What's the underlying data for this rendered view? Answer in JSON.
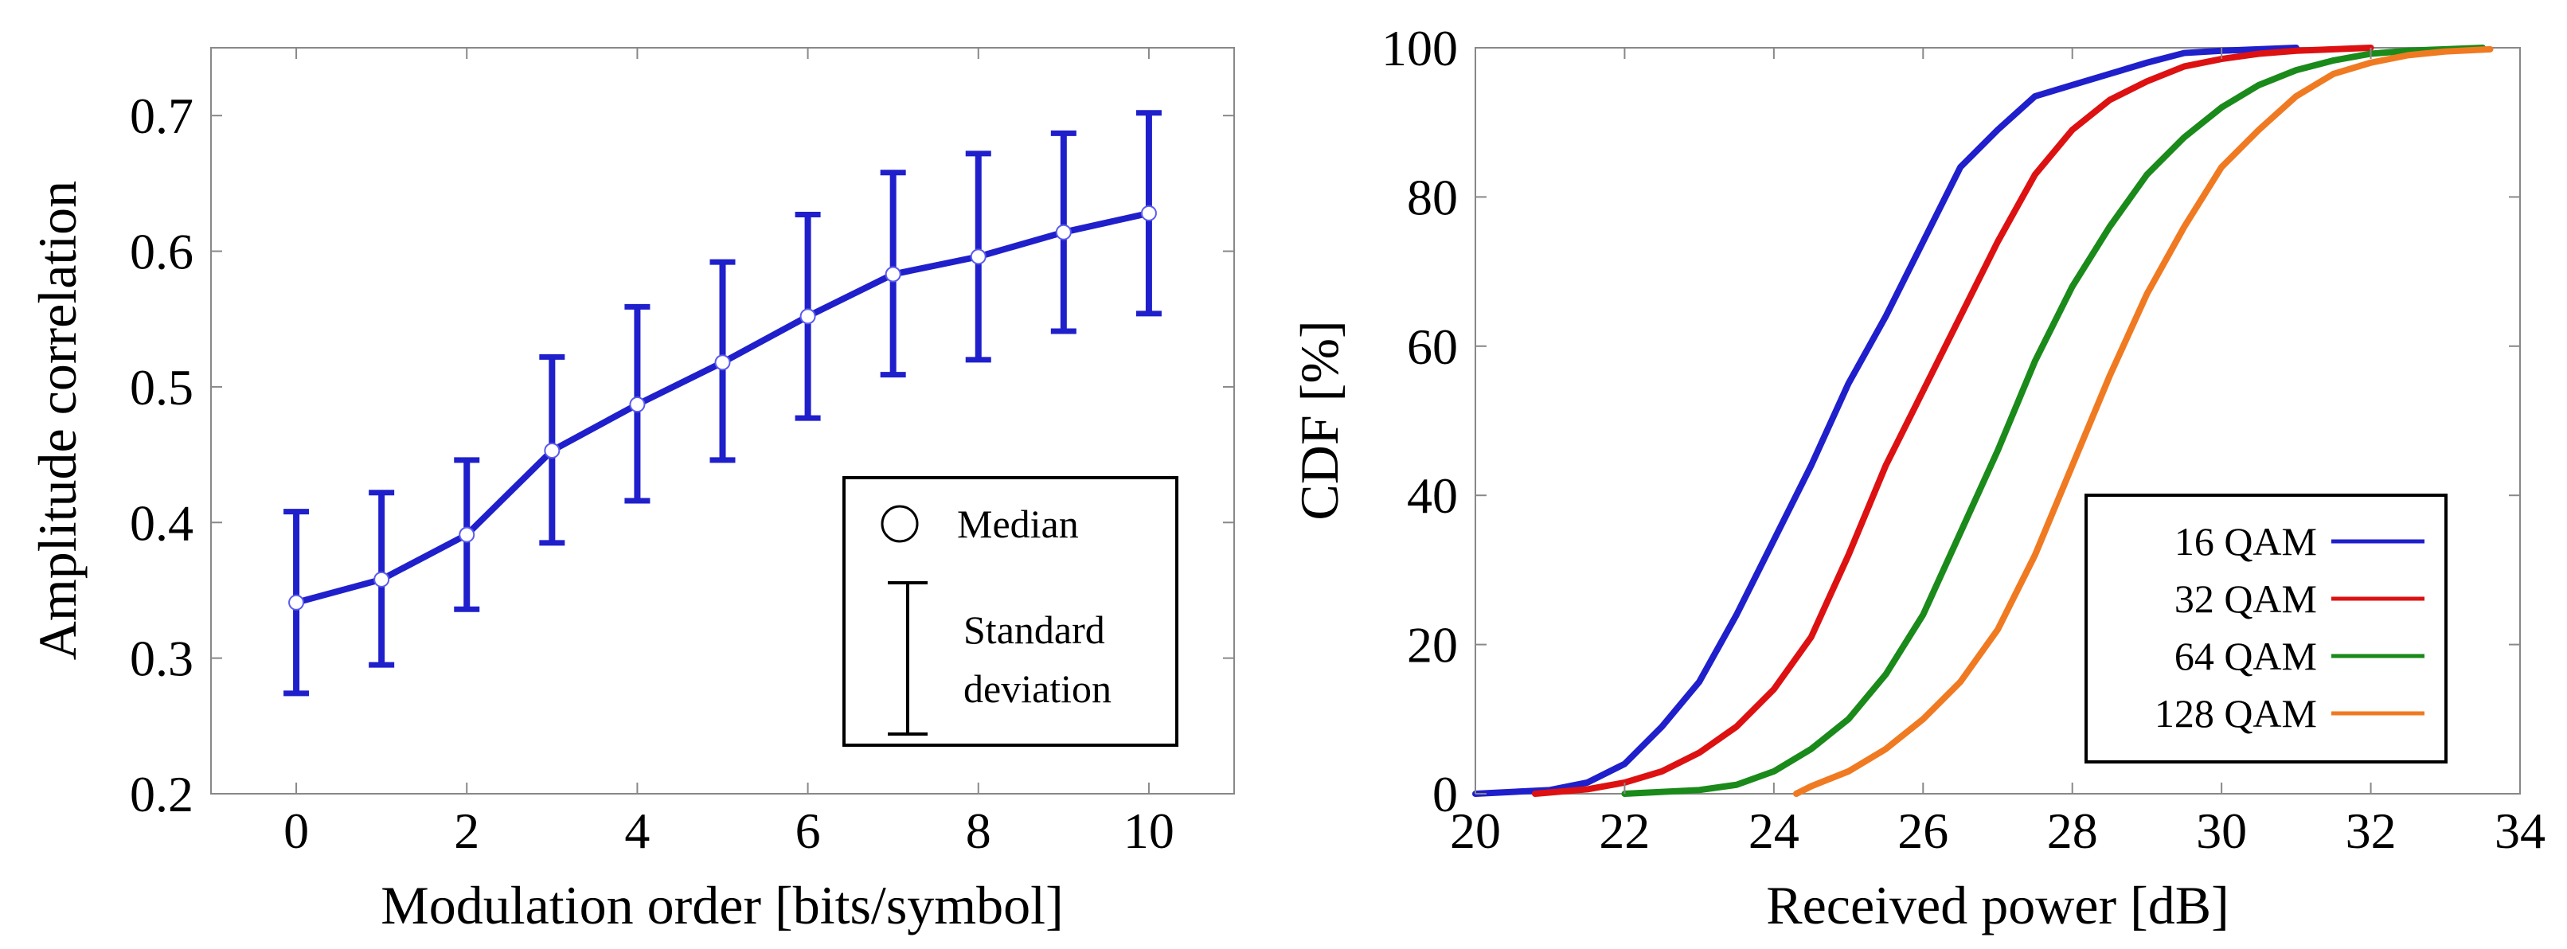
{
  "chart_data": [
    {
      "type": "line",
      "xlabel": "Modulation order [bits/symbol]",
      "ylabel": "Amplitude correlation",
      "xlim": [
        -1,
        11
      ],
      "ylim": [
        0.2,
        0.75
      ],
      "xticks": [
        "0",
        "2",
        "4",
        "6",
        "8",
        "10"
      ],
      "yticks": [
        "0.2",
        "0.3",
        "0.4",
        "0.5",
        "0.6",
        "0.7"
      ],
      "legend_position": "bottom-right",
      "legend": {
        "median": "Median",
        "std_line1": "Standard",
        "std_line2": "deviation"
      },
      "series": [
        {
          "name": "Median",
          "color": "#1f1fcc",
          "x": [
            0,
            1,
            2,
            3,
            4,
            5,
            6,
            7,
            8,
            9,
            10
          ],
          "values": [
            0.341,
            0.358,
            0.391,
            0.453,
            0.487,
            0.518,
            0.552,
            0.583,
            0.596,
            0.614,
            0.628
          ],
          "err_low": [
            0.274,
            0.295,
            0.336,
            0.385,
            0.416,
            0.446,
            0.477,
            0.509,
            0.52,
            0.541,
            0.554
          ],
          "err_high": [
            0.408,
            0.422,
            0.446,
            0.522,
            0.559,
            0.592,
            0.627,
            0.658,
            0.672,
            0.687,
            0.702
          ]
        }
      ]
    },
    {
      "type": "line",
      "xlabel": "Received power [dB]",
      "ylabel": "CDF [%]",
      "xlim": [
        20,
        34
      ],
      "ylim": [
        0,
        100
      ],
      "xticks": [
        "20",
        "22",
        "24",
        "26",
        "28",
        "30",
        "32",
        "34"
      ],
      "yticks": [
        "0",
        "20",
        "40",
        "60",
        "80",
        "100"
      ],
      "legend_position": "bottom-right",
      "series": [
        {
          "name": "16 QAM",
          "color": "#1f1fcc",
          "x": [
            20.0,
            21.0,
            21.5,
            22.0,
            22.5,
            23.0,
            23.5,
            24.0,
            24.5,
            25.0,
            25.5,
            26.0,
            26.5,
            27.0,
            27.5,
            28.0,
            28.5,
            29.0,
            29.5,
            30.0,
            30.5,
            31.0
          ],
          "values": [
            0,
            0.5,
            1.5,
            4,
            9,
            15,
            24,
            34,
            44,
            55,
            64,
            74,
            84,
            89,
            93.5,
            95,
            96.5,
            98,
            99.3,
            99.6,
            99.8,
            100
          ]
        },
        {
          "name": "32 QAM",
          "color": "#dd1111",
          "x": [
            20.8,
            21.5,
            22.0,
            22.5,
            23.0,
            23.5,
            24.0,
            24.5,
            25.0,
            25.5,
            26.0,
            26.5,
            27.0,
            27.5,
            28.0,
            28.5,
            29.0,
            29.5,
            30.0,
            30.5,
            31.0,
            31.5,
            32.0
          ],
          "values": [
            0,
            0.6,
            1.5,
            3,
            5.5,
            9,
            14,
            21,
            32,
            44,
            54,
            64,
            74,
            83,
            89,
            93,
            95.5,
            97.5,
            98.5,
            99.2,
            99.6,
            99.8,
            100
          ]
        },
        {
          "name": "64 QAM",
          "color": "#1a8a1a",
          "x": [
            22.0,
            23.0,
            23.5,
            24.0,
            24.5,
            25.0,
            25.5,
            26.0,
            26.5,
            27.0,
            27.5,
            28.0,
            28.5,
            29.0,
            29.5,
            30.0,
            30.5,
            31.0,
            31.5,
            32.0,
            32.5,
            33.0,
            33.5
          ],
          "values": [
            0,
            0.5,
            1.2,
            3,
            6,
            10,
            16,
            24,
            35,
            46,
            58,
            68,
            76,
            83,
            88,
            92,
            95,
            97,
            98.3,
            99.2,
            99.6,
            99.8,
            100
          ]
        },
        {
          "name": "128 QAM",
          "color": "#f07a22",
          "x": [
            24.3,
            24.5,
            25.0,
            25.5,
            26.0,
            26.5,
            27.0,
            27.5,
            28.0,
            28.5,
            29.0,
            29.5,
            30.0,
            30.5,
            31.0,
            31.5,
            32.0,
            32.5,
            33.0,
            33.6
          ],
          "values": [
            0,
            1,
            3,
            6,
            10,
            15,
            22,
            32,
            44,
            56,
            67,
            76,
            84,
            89,
            93.5,
            96.5,
            98,
            99,
            99.5,
            99.8
          ]
        }
      ]
    }
  ]
}
